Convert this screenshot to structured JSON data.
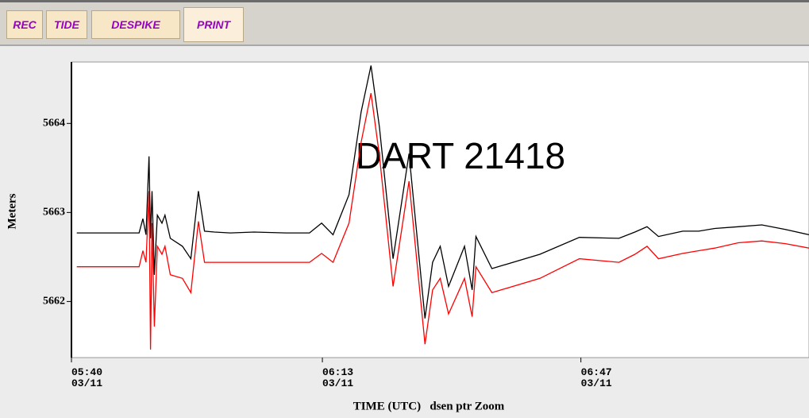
{
  "toolbar": {
    "buttons": [
      "REC",
      "TIDE",
      "DESPIKE",
      "PRINT"
    ]
  },
  "chart_data": {
    "type": "line",
    "annotation": "DART 21418",
    "ylabel": "Meters",
    "xlabel": "TIME (UTC)   dsen ptr Zoom",
    "x": [
      340.7,
      348.9,
      349.4,
      349.8,
      350.2,
      350.4,
      350.6,
      350.9,
      351.3,
      351.9,
      352.3,
      353.0,
      354.6,
      355.7,
      356.7,
      357.5,
      358.8,
      360.9,
      364.0,
      368.2,
      371.3,
      372.9,
      374.4,
      376.5,
      378.1,
      379.4,
      380.5,
      382.3,
      384.4,
      386.5,
      387.5,
      388.5,
      389.6,
      391.7,
      392.7,
      393.2,
      395.3,
      401.6,
      406.8,
      412.0,
      414.1,
      415.7,
      417.2,
      420.4,
      422.5,
      424.6,
      427.7,
      430.8,
      433.9,
      437.0
    ],
    "series": [
      {
        "color": "#000000",
        "values": [
          5662.77,
          5662.77,
          5662.93,
          5662.75,
          5663.63,
          5662.71,
          5663.24,
          5662.3,
          5662.97,
          5662.88,
          5662.97,
          5662.71,
          5662.62,
          5662.48,
          5663.24,
          5662.79,
          5662.78,
          5662.77,
          5662.78,
          5662.77,
          5662.77,
          5662.88,
          5662.75,
          5663.2,
          5664.13,
          5664.65,
          5663.96,
          5662.48,
          5663.66,
          5661.81,
          5662.44,
          5662.62,
          5662.17,
          5662.62,
          5662.13,
          5662.73,
          5662.37,
          5662.53,
          5662.72,
          5662.71,
          5662.78,
          5662.84,
          5662.73,
          5662.79,
          5662.79,
          5662.82,
          5662.84,
          5662.86,
          5662.81,
          5662.75
        ]
      },
      {
        "color": "#ff0000",
        "values": [
          5662.39,
          5662.39,
          5662.57,
          5662.44,
          5663.24,
          5661.46,
          5662.88,
          5661.72,
          5662.62,
          5662.53,
          5662.62,
          5662.3,
          5662.26,
          5662.1,
          5662.9,
          5662.44,
          5662.44,
          5662.44,
          5662.44,
          5662.44,
          5662.44,
          5662.54,
          5662.44,
          5662.88,
          5663.79,
          5664.34,
          5663.64,
          5662.17,
          5663.35,
          5661.52,
          5662.13,
          5662.26,
          5661.86,
          5662.26,
          5661.83,
          5662.39,
          5662.1,
          5662.26,
          5662.48,
          5662.44,
          5662.53,
          5662.62,
          5662.48,
          5662.54,
          5662.57,
          5662.6,
          5662.66,
          5662.68,
          5662.65,
          5662.6
        ]
      }
    ],
    "xlim": [
      340,
      437
    ],
    "xticks": [
      {
        "value": 340,
        "label": "05:40\n03/11"
      },
      {
        "value": 373,
        "label": "06:13\n03/11"
      },
      {
        "value": 407,
        "label": "06:47\n03/11"
      }
    ],
    "ylim": [
      5661.37,
      5664.69
    ],
    "yticks": [
      5662,
      5663,
      5664
    ],
    "grid": false
  }
}
